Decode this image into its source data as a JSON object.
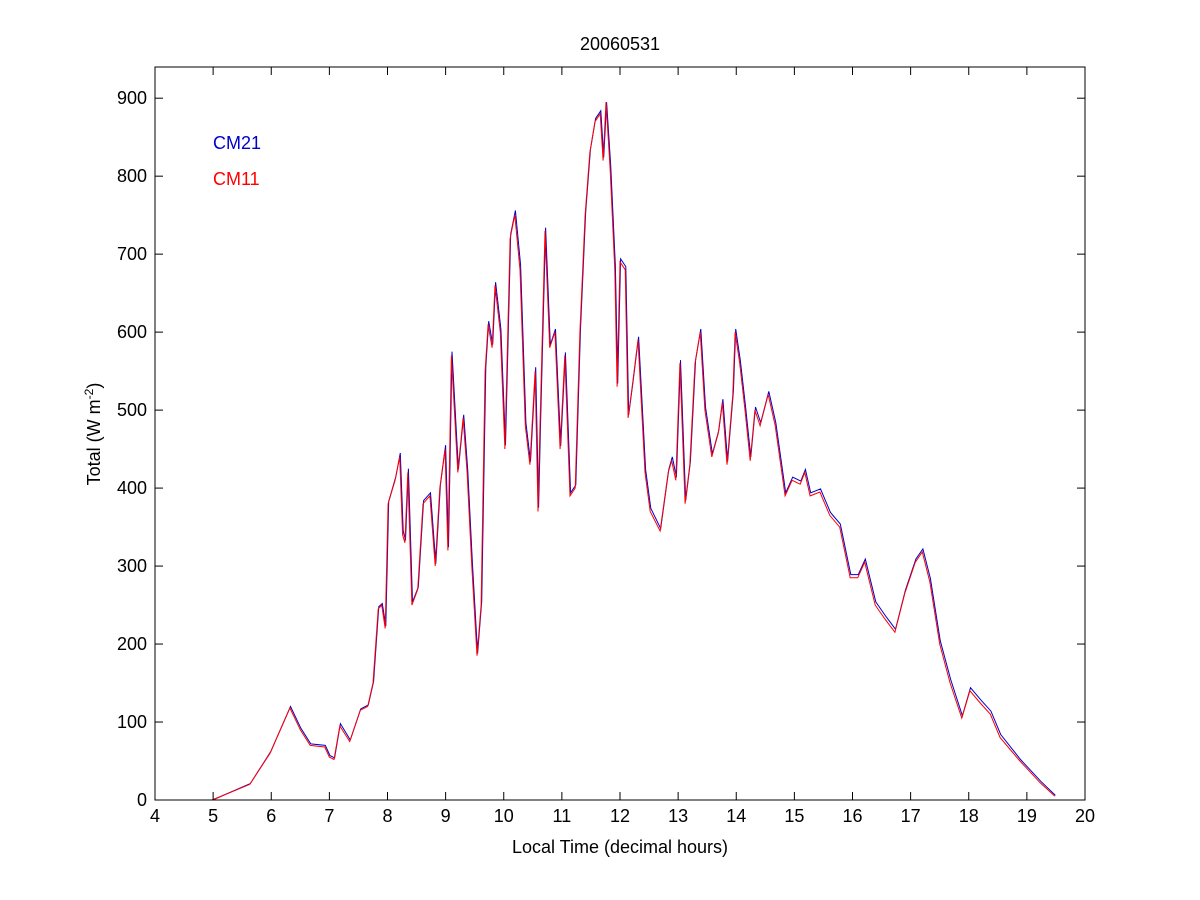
{
  "chart_data": {
    "type": "line",
    "title": "20060531",
    "xlabel": "Local Time (decimal hours)",
    "ylabel_main": "Total (W m",
    "ylabel_sup": "-2",
    "ylabel_close": ")",
    "xlim": [
      4,
      20
    ],
    "ylim": [
      0,
      940
    ],
    "xticks": [
      4,
      5,
      6,
      7,
      8,
      9,
      10,
      11,
      12,
      13,
      14,
      15,
      16,
      17,
      18,
      19,
      20
    ],
    "yticks": [
      0,
      100,
      200,
      300,
      400,
      500,
      600,
      700,
      800,
      900
    ],
    "grid": false,
    "legend_placement": "top-left",
    "x": [
      4.98,
      5.63,
      5.98,
      6.32,
      6.5,
      6.67,
      6.92,
      7.0,
      7.08,
      7.18,
      7.35,
      7.53,
      7.66,
      7.75,
      7.84,
      7.9,
      7.96,
      8.01,
      8.13,
      8.21,
      8.26,
      8.3,
      8.35,
      8.42,
      8.52,
      8.61,
      8.73,
      8.82,
      8.9,
      8.99,
      9.04,
      9.1,
      9.21,
      9.3,
      9.37,
      9.45,
      9.54,
      9.61,
      9.68,
      9.73,
      9.8,
      9.85,
      9.94,
      10.02,
      10.11,
      10.19,
      10.28,
      10.37,
      10.45,
      10.54,
      10.59,
      10.62,
      10.71,
      10.79,
      10.88,
      10.97,
      11.05,
      11.14,
      11.23,
      11.31,
      11.4,
      11.48,
      11.57,
      11.66,
      11.71,
      11.76,
      11.83,
      11.91,
      11.95,
      12.0,
      12.09,
      12.14,
      12.21,
      12.31,
      12.43,
      12.52,
      12.69,
      12.83,
      12.89,
      12.96,
      13.03,
      13.12,
      13.2,
      13.29,
      13.38,
      13.46,
      13.58,
      13.69,
      13.76,
      13.84,
      13.94,
      13.98,
      14.06,
      14.15,
      14.24,
      14.32,
      14.41,
      14.55,
      14.67,
      14.84,
      14.96,
      15.1,
      15.18,
      15.27,
      15.44,
      15.61,
      15.78,
      15.96,
      16.09,
      16.21,
      16.39,
      16.56,
      16.73,
      16.9,
      17.08,
      17.2,
      17.33,
      17.5,
      17.68,
      17.88,
      18.02,
      18.19,
      18.37,
      18.54,
      18.88,
      19.23,
      19.48
    ],
    "series": [
      {
        "name": "CM21",
        "color": "#0000cc",
        "values": [
          0,
          21,
          62,
          120,
          92,
          72,
          70,
          57,
          54,
          98,
          77,
          117,
          122,
          152,
          248,
          252,
          223,
          383,
          414,
          445,
          345,
          333,
          425,
          254,
          273,
          384,
          394,
          303,
          404,
          455,
          324,
          575,
          424,
          494,
          424,
          304,
          188,
          254,
          555,
          614,
          584,
          664,
          604,
          455,
          726,
          756,
          686,
          484,
          434,
          555,
          375,
          475,
          734,
          584,
          604,
          454,
          574,
          394,
          404,
          604,
          754,
          834,
          874,
          884,
          824,
          895,
          814,
          684,
          534,
          694,
          684,
          494,
          534,
          594,
          424,
          374,
          348,
          424,
          440,
          414,
          564,
          384,
          434,
          564,
          604,
          504,
          444,
          474,
          514,
          434,
          524,
          604,
          564,
          504,
          440,
          504,
          484,
          524,
          484,
          394,
          414,
          409,
          424,
          394,
          399,
          369,
          354,
          289,
          289,
          309,
          254,
          236,
          219,
          269,
          309,
          322,
          284,
          204,
          154,
          108,
          144,
          129,
          114,
          84,
          52,
          24,
          6
        ]
      },
      {
        "name": "CM11",
        "color": "#ff0000",
        "values": [
          0,
          20,
          60,
          118,
          90,
          70,
          68,
          55,
          52,
          95,
          75,
          115,
          120,
          150,
          245,
          250,
          220,
          380,
          410,
          440,
          340,
          330,
          420,
          250,
          270,
          380,
          390,
          300,
          400,
          450,
          320,
          570,
          420,
          490,
          420,
          300,
          185,
          250,
          550,
          610,
          580,
          660,
          600,
          450,
          720,
          750,
          680,
          480,
          430,
          550,
          370,
          470,
          730,
          580,
          600,
          450,
          570,
          390,
          400,
          600,
          750,
          830,
          870,
          880,
          820,
          895,
          810,
          680,
          530,
          690,
          680,
          490,
          530,
          590,
          420,
          370,
          345,
          420,
          435,
          410,
          560,
          380,
          430,
          560,
          600,
          500,
          440,
          470,
          510,
          430,
          520,
          600,
          560,
          500,
          435,
          500,
          480,
          520,
          480,
          390,
          410,
          405,
          420,
          390,
          395,
          365,
          350,
          285,
          285,
          305,
          250,
          232,
          215,
          265,
          305,
          318,
          280,
          200,
          150,
          105,
          140,
          125,
          110,
          80,
          50,
          22,
          5
        ]
      }
    ]
  }
}
